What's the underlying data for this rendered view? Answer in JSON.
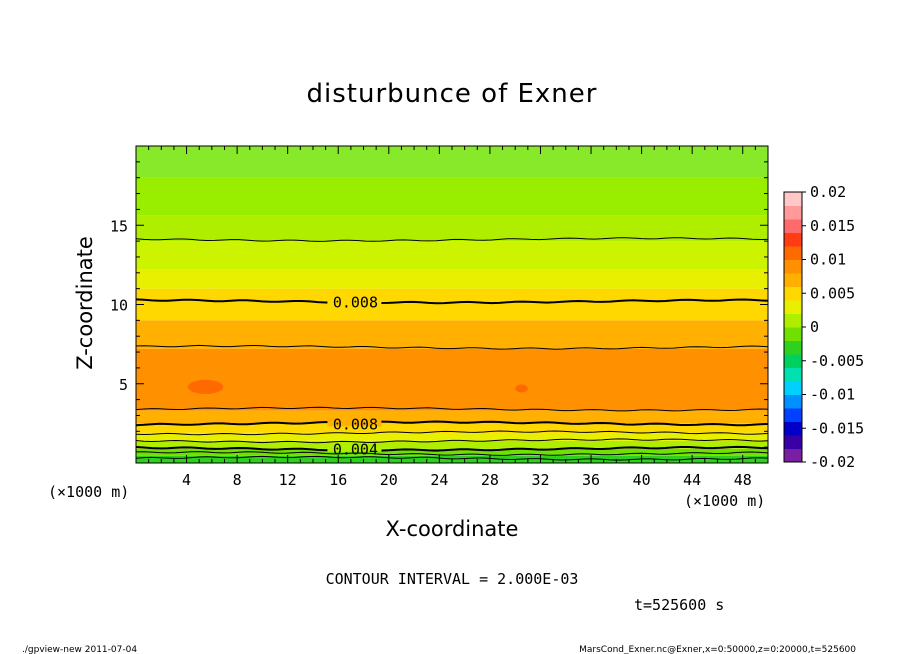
{
  "chart_data": {
    "type": "heatmap",
    "title": "disturbunce of Exner",
    "xlabel": "X-coordinate",
    "ylabel": "Z-coordinate",
    "x_unit_left": "(×1000 m)",
    "x_unit_right": "(×1000 m)",
    "xlim": [
      0,
      50
    ],
    "ylim": [
      0,
      20
    ],
    "x_ticks": [
      4,
      8,
      12,
      16,
      20,
      24,
      28,
      32,
      36,
      40,
      44,
      48
    ],
    "y_ticks": [
      5,
      10,
      15
    ],
    "colorbar": {
      "min": -0.02,
      "max": 0.02,
      "ticks": [
        "0.02",
        "0.015",
        "0.01",
        "0.005",
        "0",
        "-0.005",
        "-0.01",
        "-0.015",
        "-0.02"
      ],
      "colors": [
        "#7b1fa2",
        "#3a00a8",
        "#0000c8",
        "#0040ff",
        "#0090ff",
        "#00d0ff",
        "#00e0b0",
        "#00d060",
        "#30d020",
        "#70e000",
        "#b0ee00",
        "#e8f000",
        "#ffd800",
        "#ffb000",
        "#ff9000",
        "#ff6a00",
        "#ff3c14",
        "#ff6a6a",
        "#ff9a9a",
        "#ffc8c8"
      ]
    },
    "bands": [
      {
        "z0": 0.0,
        "z1": 0.45,
        "color": "#30d020"
      },
      {
        "z0": 0.45,
        "z1": 0.9,
        "color": "#70e000"
      },
      {
        "z0": 0.9,
        "z1": 1.4,
        "color": "#b0ee00"
      },
      {
        "z0": 1.4,
        "z1": 1.9,
        "color": "#e8f000"
      },
      {
        "z0": 1.9,
        "z1": 2.5,
        "color": "#ffd800"
      },
      {
        "z0": 2.5,
        "z1": 3.3,
        "color": "#ffb000"
      },
      {
        "z0": 3.3,
        "z1": 7.2,
        "color": "#ff9000"
      },
      {
        "z0": 7.2,
        "z1": 9.0,
        "color": "#ffb000"
      },
      {
        "z0": 9.0,
        "z1": 11.0,
        "color": "#ffd800"
      },
      {
        "z0": 11.0,
        "z1": 12.2,
        "color": "#e8f000"
      },
      {
        "z0": 12.2,
        "z1": 14.0,
        "color": "#ccf400"
      },
      {
        "z0": 14.0,
        "z1": 15.6,
        "color": "#b0ee00"
      },
      {
        "z0": 15.6,
        "z1": 18.0,
        "color": "#99ee00"
      },
      {
        "z0": 18.0,
        "z1": 20.0,
        "color": "#88e82a"
      }
    ],
    "contour_lines": [
      {
        "z": 0.3,
        "bold": false
      },
      {
        "z": 0.6,
        "bold": false
      },
      {
        "z": 0.9,
        "bold": true
      },
      {
        "z": 1.4,
        "bold": false
      },
      {
        "z": 1.9,
        "bold": false
      },
      {
        "z": 2.5,
        "bold": true
      },
      {
        "z": 3.4,
        "bold": false
      },
      {
        "z": 7.3,
        "bold": false
      },
      {
        "z": 10.2,
        "bold": true
      },
      {
        "z": 14.1,
        "bold": false
      }
    ],
    "contour_labels": [
      {
        "text": "0.008",
        "x": 17.2,
        "z": 10.2
      },
      {
        "text": "0.008",
        "x": 17.2,
        "z": 2.5
      },
      {
        "text": "0.004",
        "x": 17.2,
        "z": 0.9
      }
    ],
    "highs": [
      {
        "x": 5.5,
        "z": 4.8,
        "rx": 1.4,
        "rz": 0.45
      },
      {
        "x": 30.5,
        "z": 4.7,
        "rx": 0.5,
        "rz": 0.25
      }
    ]
  },
  "annotations": {
    "contour_interval": "CONTOUR INTERVAL = 2.000E-03",
    "time": "t=525600  s",
    "footer_left": "./gpview-new  2011-07-04",
    "footer_right": "MarsCond_Exner.nc@Exner,x=0:50000,z=0:20000,t=525600"
  }
}
